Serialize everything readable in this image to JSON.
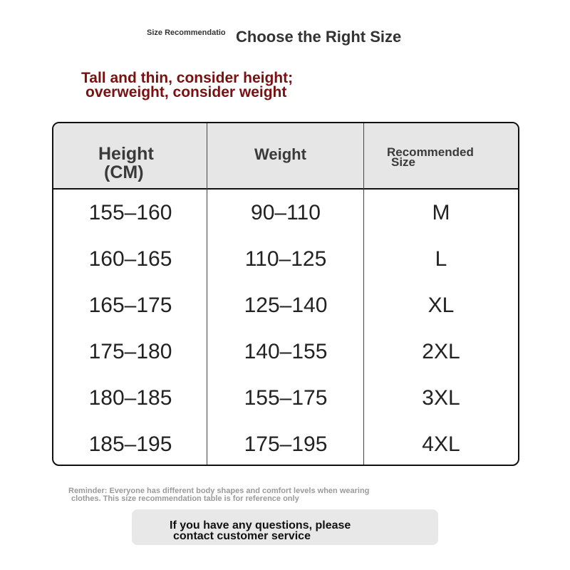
{
  "header": {
    "small_title": "Size Recommendatio",
    "title": "Choose the Right Size"
  },
  "tip": {
    "line1": "Tall and thin, consider height;",
    "line2": "overweight, consider weight"
  },
  "table": {
    "headers": {
      "height_line1": "Height",
      "height_line2": "(CM)",
      "weight": "Weight",
      "size_line1": "Recommended",
      "size_line2": "Size"
    },
    "rows": [
      {
        "height": "155–160",
        "weight": "90–110",
        "size": "M"
      },
      {
        "height": "160–165",
        "weight": "110–125",
        "size": "L"
      },
      {
        "height": "165–175",
        "weight": "125–140",
        "size": "XL"
      },
      {
        "height": "175–180",
        "weight": "140–155",
        "size": "2XL"
      },
      {
        "height": "180–185",
        "weight": "155–175",
        "size": "3XL"
      },
      {
        "height": "185–195",
        "weight": "175–195",
        "size": "4XL"
      }
    ]
  },
  "reminder": {
    "line1": "Reminder: Everyone has different body shapes and comfort levels when wearing",
    "line2": "clothes. This size recommendation table is for reference only"
  },
  "contact": {
    "line1": "If you have any questions, please",
    "line2": "contact customer service"
  },
  "colors": {
    "tip": "#7a1010",
    "header_bg": "#e6e6e6",
    "contact_bg": "#e8e8e8"
  }
}
